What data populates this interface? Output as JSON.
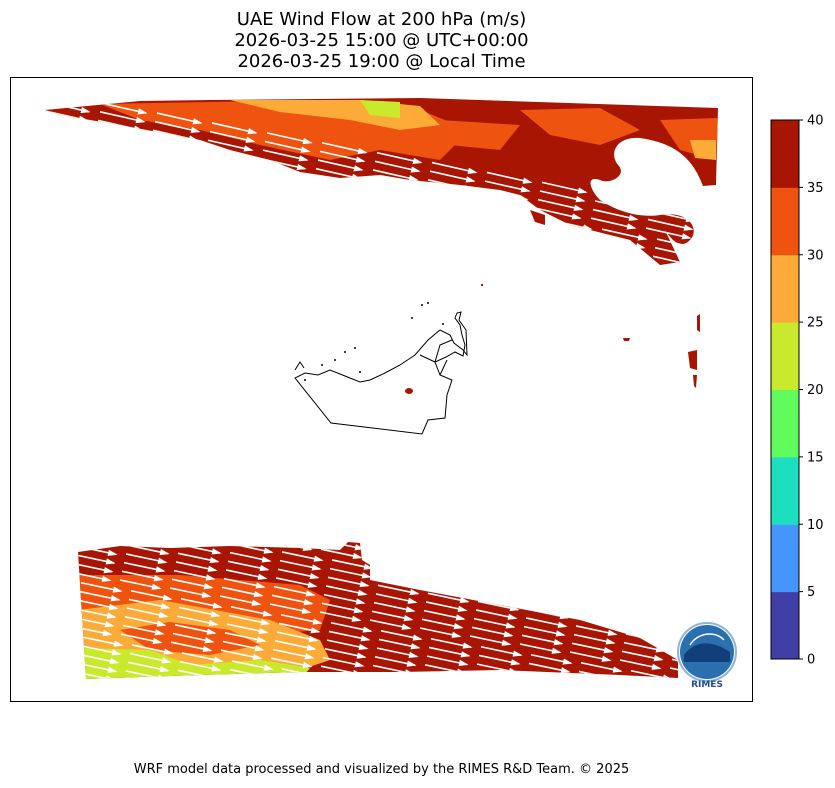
{
  "title": {
    "line1": "UAE Wind Flow at 200 hPa (m/s)",
    "line2": "2026-03-25 15:00 @ UTC+00:00",
    "line3": "2026-03-25 19:00 @ Local Time"
  },
  "colorbar": {
    "ticks": [
      "0",
      "5",
      "10",
      "15",
      "20",
      "25",
      "30",
      "35",
      "40"
    ],
    "colors": [
      "#3f3fa6",
      "#4595ff",
      "#1cdfc0",
      "#62fb5d",
      "#c9ea2c",
      "#fdab38",
      "#ef5310",
      "#a81503"
    ]
  },
  "logo": {
    "text": "RIMES"
  },
  "footer": "WRF model data processed and visualized by the RIMES R&D Team. © 2025"
}
